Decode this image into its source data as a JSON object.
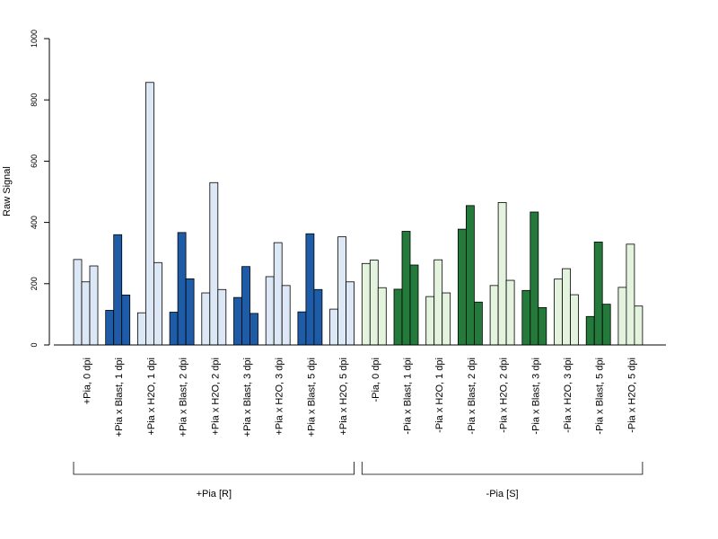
{
  "chart_data": {
    "type": "bar",
    "title": "",
    "ylabel": "Raw Signal",
    "xlabel": "",
    "ylim": [
      0,
      1000
    ],
    "yticks": [
      0,
      200,
      400,
      600,
      800,
      1000
    ],
    "grid": false,
    "categories": [
      "+Pia, 0 dpi",
      "+Pia x Blast, 1 dpi",
      "+Pia x H2O, 1 dpi",
      "+Pia x Blast, 2 dpi",
      "+Pia x H2O, 2 dpi",
      "+Pia x Blast, 3 dpi",
      "+Pia x H2O, 3 dpi",
      "+Pia x Blast, 5 dpi",
      "+Pia x H2O, 5 dpi",
      "-Pia, 0 dpi",
      "-Pia x Blast, 1 dpi",
      "-Pia x H2O, 1 dpi",
      "-Pia x Blast, 2 dpi",
      "-Pia x H2O, 2 dpi",
      "-Pia x Blast, 3 dpi",
      "-Pia x H2O, 3 dpi",
      "-Pia x Blast, 5 dpi",
      "-Pia x H2O, 5 dpi"
    ],
    "values": [
      [
        279,
        206,
        258
      ],
      [
        113,
        360,
        163
      ],
      [
        105,
        857,
        269
      ],
      [
        107,
        367,
        216
      ],
      [
        170,
        530,
        181
      ],
      [
        155,
        256,
        103
      ],
      [
        223,
        334,
        194
      ],
      [
        108,
        363,
        181
      ],
      [
        117,
        353,
        206
      ],
      [
        266,
        277,
        187
      ],
      [
        182,
        371,
        261
      ],
      [
        158,
        278,
        170
      ],
      [
        378,
        455,
        140
      ],
      [
        194,
        465,
        211
      ],
      [
        178,
        434,
        122
      ],
      [
        215,
        249,
        164
      ],
      [
        93,
        336,
        133
      ],
      [
        188,
        329,
        127
      ]
    ],
    "bar_colors": [
      "#dce8f5",
      "#1f5ca8",
      "#dce8f5",
      "#1f5ca8",
      "#dce8f5",
      "#1f5ca8",
      "#dce8f5",
      "#1f5ca8",
      "#dce8f5",
      "#e4f3de",
      "#237a3b",
      "#e4f3de",
      "#237a3b",
      "#e4f3de",
      "#237a3b",
      "#e4f3de",
      "#237a3b",
      "#e4f3de"
    ],
    "groups": [
      {
        "label": "+Pia [R]",
        "start": 0,
        "end": 8
      },
      {
        "label": "-Pia [S]",
        "start": 9,
        "end": 17
      }
    ]
  }
}
